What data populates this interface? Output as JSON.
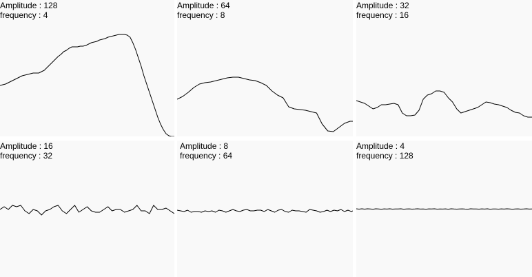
{
  "line_color": "#000000",
  "panel_background": "#f9f9f9",
  "chart_data": [
    {
      "type": "line",
      "amplitude_label": "Amplitude : 128",
      "frequency_label": "frequency : 4",
      "x": [
        0,
        4,
        8,
        12,
        16,
        20,
        24,
        28,
        32,
        36,
        40,
        44,
        48,
        52,
        56,
        60,
        64,
        68,
        72,
        76,
        80,
        84,
        88,
        92,
        96,
        100,
        104,
        108,
        112,
        116,
        120,
        124,
        128,
        132,
        136,
        140,
        144,
        148,
        152,
        156,
        160,
        164,
        168,
        172,
        176,
        180,
        184,
        188,
        192,
        196,
        200,
        204,
        208,
        212,
        216,
        220,
        224,
        228,
        232,
        236,
        240,
        244,
        248,
        252
      ],
      "values": [
        -24,
        -23,
        -22,
        -20,
        -18,
        -16,
        -14,
        -12,
        -10,
        -9,
        -8,
        -7,
        -6,
        -6,
        -6,
        -4,
        -2,
        2,
        6,
        10,
        14,
        18,
        21,
        25,
        27,
        30,
        32,
        32,
        32,
        33,
        33,
        34,
        36,
        38,
        39,
        40,
        42,
        43,
        44,
        46,
        47,
        48,
        49,
        50,
        50,
        50,
        49,
        46,
        38,
        28,
        16,
        4,
        -10,
        -22,
        -34,
        -46,
        -58,
        -70,
        -80,
        -88,
        -94,
        -97,
        -98,
        -98
      ]
    },
    {
      "type": "line",
      "amplitude_label": "Amplitude : 64",
      "frequency_label": "frequency : 8",
      "x": [
        0,
        8,
        16,
        24,
        32,
        40,
        48,
        56,
        64,
        72,
        80,
        88,
        96,
        104,
        112,
        120,
        128,
        136,
        144,
        152,
        160,
        168,
        176,
        184,
        192,
        200,
        208,
        216,
        224,
        232,
        240,
        248,
        252
      ],
      "values": [
        -44,
        -40,
        -34,
        -27,
        -22,
        -20,
        -19,
        -17,
        -15,
        -13,
        -12,
        -12,
        -14,
        -16,
        -17,
        -20,
        -24,
        -32,
        -38,
        -42,
        -55,
        -58,
        -59,
        -60,
        -62,
        -64,
        -80,
        -90,
        -91,
        -85,
        -79,
        -76,
        -76
      ]
    },
    {
      "type": "line",
      "amplitude_label": "Amplitude : 32",
      "frequency_label": "frequency : 16",
      "x": [
        0,
        6,
        12,
        18,
        24,
        30,
        36,
        42,
        48,
        54,
        60,
        66,
        72,
        78,
        84,
        90,
        96,
        102,
        108,
        114,
        120,
        126,
        132,
        138,
        144,
        150,
        156,
        162,
        168,
        174,
        180,
        186,
        192,
        198,
        204,
        210,
        216,
        222,
        228,
        234,
        240,
        246,
        252
      ],
      "values": [
        -46,
        -48,
        -50,
        -54,
        -58,
        -56,
        -52,
        -52,
        -51,
        -50,
        -52,
        -64,
        -68,
        -68,
        -67,
        -60,
        -44,
        -38,
        -36,
        -32,
        -32,
        -34,
        -42,
        -48,
        -58,
        -64,
        -62,
        -60,
        -58,
        -56,
        -52,
        -48,
        -49,
        -51,
        -52,
        -54,
        -56,
        -60,
        -63,
        -64,
        -68,
        -70,
        -70
      ]
    },
    {
      "type": "line",
      "amplitude_label": "Amplitude : 16",
      "frequency_label": "frequency : 32",
      "x": [
        0,
        6,
        12,
        18,
        24,
        30,
        36,
        42,
        48,
        54,
        60,
        66,
        72,
        78,
        84,
        90,
        96,
        102,
        108,
        114,
        120,
        126,
        132,
        138,
        144,
        150,
        156,
        162,
        168,
        174,
        180,
        186,
        192,
        198,
        204,
        210,
        216,
        222,
        228,
        234,
        240,
        246,
        252
      ],
      "values": [
        -2,
        2,
        -2,
        4,
        2,
        4,
        -4,
        -8,
        -2,
        -4,
        -10,
        -4,
        -2,
        2,
        4,
        -4,
        -8,
        -2,
        4,
        -6,
        -2,
        2,
        -4,
        -6,
        -6,
        -2,
        2,
        -4,
        -2,
        -2,
        -6,
        -4,
        -2,
        4,
        -4,
        -4,
        -8,
        4,
        -2,
        -2,
        0,
        -4,
        -8
      ]
    },
    {
      "type": "line",
      "amplitude_label": "Amplitude : 8",
      "frequency_label": "frequency : 64",
      "x": [
        0,
        5,
        10,
        15,
        20,
        25,
        30,
        35,
        40,
        45,
        50,
        55,
        60,
        65,
        70,
        75,
        80,
        85,
        90,
        95,
        100,
        105,
        110,
        115,
        120,
        125,
        130,
        135,
        140,
        145,
        150,
        155,
        160,
        165,
        170,
        175,
        180,
        185,
        190,
        195,
        200,
        205,
        210,
        215,
        220,
        225,
        230,
        235,
        240,
        245,
        250,
        252
      ],
      "values": [
        -3,
        -4,
        -5,
        -3,
        -6,
        -5,
        -5,
        -6,
        -4,
        -5,
        -4,
        -6,
        -3,
        -4,
        -6,
        -4,
        -2,
        -4,
        -5,
        -3,
        -2,
        -4,
        -4,
        -3,
        -3,
        -5,
        -2,
        -4,
        -6,
        -3,
        -2,
        -5,
        -6,
        -3,
        -4,
        -4,
        -5,
        -6,
        -2,
        -3,
        -4,
        -6,
        -5,
        -3,
        -5,
        -3,
        -4,
        -2,
        -5,
        -3,
        -5,
        -4
      ]
    },
    {
      "type": "line",
      "amplitude_label": "Amplitude : 4",
      "frequency_label": "frequency : 128",
      "x": [
        0,
        4,
        8,
        12,
        16,
        20,
        24,
        28,
        32,
        36,
        40,
        44,
        48,
        52,
        56,
        60,
        64,
        68,
        72,
        76,
        80,
        84,
        88,
        92,
        96,
        100,
        104,
        108,
        112,
        116,
        120,
        124,
        128,
        132,
        136,
        140,
        144,
        148,
        152,
        156,
        160,
        164,
        168,
        172,
        176,
        180,
        184,
        188,
        192,
        196,
        200,
        204,
        208,
        212,
        216,
        220,
        224,
        228,
        232,
        236,
        240,
        244,
        248,
        252
      ],
      "values": [
        -1,
        -1.5,
        -1,
        -1.5,
        -1,
        -1.3,
        -1.6,
        -1,
        -1.2,
        -1.6,
        -1.1,
        -1.4,
        -1,
        -1.5,
        -1.2,
        -1.3,
        -1,
        -1.6,
        -1.2,
        -1.1,
        -1.5,
        -1.3,
        -1,
        -1.4,
        -1.2,
        -1.6,
        -1.1,
        -1.3,
        -1,
        -1.5,
        -1.2,
        -1.4,
        -1.1,
        -1.6,
        -1,
        -1.3,
        -1.5,
        -1.2,
        -1.1,
        -1.4,
        -1.6,
        -1,
        -1.3,
        -1.2,
        -1.5,
        -1.1,
        -1.4,
        -1,
        -1.6,
        -1.3,
        -1.2,
        -1.5,
        -1.1,
        -1.4,
        -1,
        -1.3,
        -1.6,
        -1.2,
        -1.1,
        -1.5,
        -1.3,
        -1,
        -1.4,
        -1.2
      ]
    }
  ]
}
